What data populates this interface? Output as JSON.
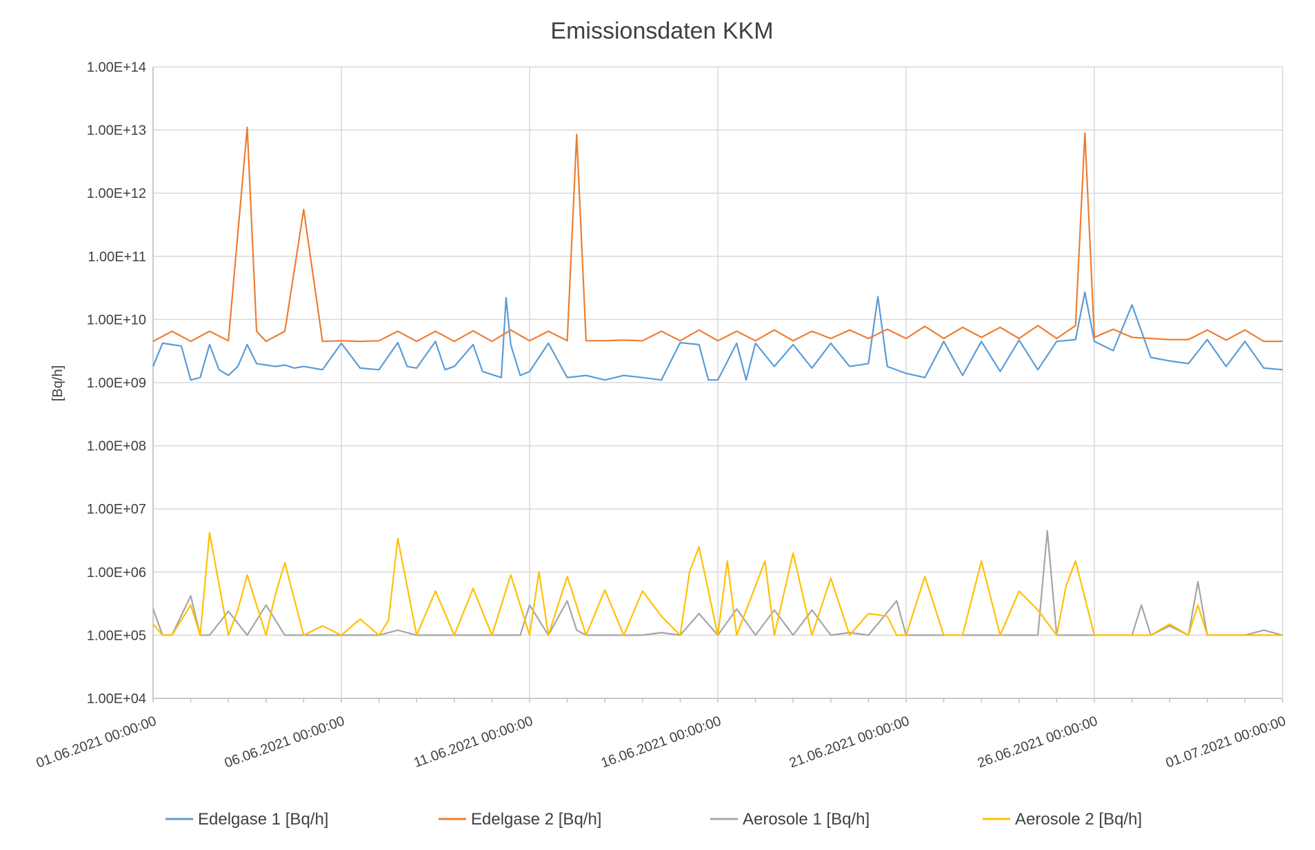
{
  "chart_data": {
    "type": "line",
    "title": "Emissionsdaten KKM",
    "xlabel": "",
    "ylabel": "[Bq/h]",
    "y_scale": "log",
    "ylim": [
      10000,
      100000000000000
    ],
    "y_ticks": [
      10000,
      100000,
      1000000,
      10000000,
      100000000,
      1000000000,
      10000000000,
      100000000000,
      1000000000000,
      10000000000000,
      100000000000000
    ],
    "y_tick_labels": [
      "1.00E+04",
      "1.00E+05",
      "1.00E+06",
      "1.00E+07",
      "1.00E+08",
      "1.00E+09",
      "1.00E+10",
      "1.00E+11",
      "1.00E+12",
      "1.00E+13",
      "1.00E+14"
    ],
    "xlim": [
      "2021-06-01T00:00:00",
      "2021-07-01T00:00:00"
    ],
    "x_ticks": [
      "2021-06-01T00:00:00",
      "2021-06-06T00:00:00",
      "2021-06-11T00:00:00",
      "2021-06-16T00:00:00",
      "2021-06-21T00:00:00",
      "2021-06-26T00:00:00",
      "2021-07-01T00:00:00"
    ],
    "x_tick_labels": [
      "01.06.2021 00:00:00",
      "06.06.2021 00:00:00",
      "11.06.2021 00:00:00",
      "16.06.2021 00:00:00",
      "21.06.2021 00:00:00",
      "26.06.2021 00:00:00",
      "01.07.2021 00:00:00"
    ],
    "grid": true,
    "legend_position": "bottom",
    "series": [
      {
        "name": "Edelgase 1 [Bq/h]",
        "color": "#5B9BD5",
        "x": [
          "2021-06-01T00:00:00",
          "2021-06-01T06:00:00",
          "2021-06-01T12:00:00",
          "2021-06-01T18:00:00",
          "2021-06-02T00:00:00",
          "2021-06-02T06:00:00",
          "2021-06-02T12:00:00",
          "2021-06-02T18:00:00",
          "2021-06-03T00:00:00",
          "2021-06-03T06:00:00",
          "2021-06-03T12:00:00",
          "2021-06-03T18:00:00",
          "2021-06-04T00:00:00",
          "2021-06-04T06:00:00",
          "2021-06-04T12:00:00",
          "2021-06-04T18:00:00",
          "2021-06-05T00:00:00",
          "2021-06-05T12:00:00",
          "2021-06-06T00:00:00",
          "2021-06-06T12:00:00",
          "2021-06-07T00:00:00",
          "2021-06-07T12:00:00",
          "2021-06-07T18:00:00",
          "2021-06-08T00:00:00",
          "2021-06-08T12:00:00",
          "2021-06-08T18:00:00",
          "2021-06-09T00:00:00",
          "2021-06-09T12:00:00",
          "2021-06-09T18:00:00",
          "2021-06-10T06:00:00",
          "2021-06-10T09:00:00",
          "2021-06-10T12:00:00",
          "2021-06-10T18:00:00",
          "2021-06-11T00:00:00",
          "2021-06-11T12:00:00",
          "2021-06-12T00:00:00",
          "2021-06-12T12:00:00",
          "2021-06-13T00:00:00",
          "2021-06-13T12:00:00",
          "2021-06-14T00:00:00",
          "2021-06-14T12:00:00",
          "2021-06-15T00:00:00",
          "2021-06-15T12:00:00",
          "2021-06-15T18:00:00",
          "2021-06-16T00:00:00",
          "2021-06-16T12:00:00",
          "2021-06-16T18:00:00",
          "2021-06-17T00:00:00",
          "2021-06-17T12:00:00",
          "2021-06-18T00:00:00",
          "2021-06-18T12:00:00",
          "2021-06-19T00:00:00",
          "2021-06-19T12:00:00",
          "2021-06-20T00:00:00",
          "2021-06-20T06:00:00",
          "2021-06-20T12:00:00",
          "2021-06-21T00:00:00",
          "2021-06-21T12:00:00",
          "2021-06-22T00:00:00",
          "2021-06-22T12:00:00",
          "2021-06-23T00:00:00",
          "2021-06-23T12:00:00",
          "2021-06-24T00:00:00",
          "2021-06-24T12:00:00",
          "2021-06-25T00:00:00",
          "2021-06-25T12:00:00",
          "2021-06-25T18:00:00",
          "2021-06-26T00:00:00",
          "2021-06-26T06:00:00",
          "2021-06-26T12:00:00",
          "2021-06-27T00:00:00",
          "2021-06-27T12:00:00",
          "2021-06-28T00:00:00",
          "2021-06-28T12:00:00",
          "2021-06-29T00:00:00",
          "2021-06-29T12:00:00",
          "2021-06-30T00:00:00",
          "2021-06-30T12:00:00",
          "2021-07-01T00:00:00"
        ],
        "values": [
          1800000000,
          4200000000,
          4000000000,
          3800000000,
          1100000000,
          1200000000,
          4000000000,
          1600000000,
          1300000000,
          1800000000,
          4000000000,
          2000000000,
          1900000000,
          1800000000,
          1900000000,
          1700000000,
          1800000000,
          1600000000,
          4200000000,
          1700000000,
          1600000000,
          4300000000,
          1800000000,
          1700000000,
          4500000000,
          1600000000,
          1800000000,
          4000000000,
          1500000000,
          1200000000,
          22000000000,
          4000000000,
          1300000000,
          1500000000,
          4200000000,
          1200000000,
          1300000000,
          1100000000,
          1300000000,
          1200000000,
          1100000000,
          4300000000,
          4000000000,
          1100000000,
          1100000000,
          4200000000,
          1100000000,
          4200000000,
          1800000000,
          4000000000,
          1700000000,
          4200000000,
          1800000000,
          2000000000,
          23000000000,
          1800000000,
          1400000000,
          1200000000,
          4500000000,
          1300000000,
          4500000000,
          1500000000,
          4700000000,
          1600000000,
          4500000000,
          4800000000,
          27000000000,
          4500000000,
          3800000000,
          3200000000,
          17000000000,
          2500000000,
          2200000000,
          2000000000,
          4800000000,
          1800000000,
          4500000000,
          1700000000,
          1600000000
        ]
      },
      {
        "name": "Edelgase 2 [Bq/h]",
        "color": "#ED7D31",
        "x": [
          "2021-06-01T00:00:00",
          "2021-06-01T12:00:00",
          "2021-06-02T00:00:00",
          "2021-06-02T12:00:00",
          "2021-06-03T00:00:00",
          "2021-06-03T12:00:00",
          "2021-06-03T18:00:00",
          "2021-06-04T00:00:00",
          "2021-06-04T12:00:00",
          "2021-06-05T00:00:00",
          "2021-06-05T12:00:00",
          "2021-06-06T00:00:00",
          "2021-06-06T12:00:00",
          "2021-06-07T00:00:00",
          "2021-06-07T12:00:00",
          "2021-06-08T00:00:00",
          "2021-06-08T12:00:00",
          "2021-06-09T00:00:00",
          "2021-06-09T12:00:00",
          "2021-06-10T00:00:00",
          "2021-06-10T12:00:00",
          "2021-06-11T00:00:00",
          "2021-06-11T12:00:00",
          "2021-06-12T00:00:00",
          "2021-06-12T06:00:00",
          "2021-06-12T12:00:00",
          "2021-06-13T00:00:00",
          "2021-06-13T12:00:00",
          "2021-06-14T00:00:00",
          "2021-06-14T12:00:00",
          "2021-06-15T00:00:00",
          "2021-06-15T12:00:00",
          "2021-06-16T00:00:00",
          "2021-06-16T12:00:00",
          "2021-06-17T00:00:00",
          "2021-06-17T12:00:00",
          "2021-06-18T00:00:00",
          "2021-06-18T12:00:00",
          "2021-06-19T00:00:00",
          "2021-06-19T12:00:00",
          "2021-06-20T00:00:00",
          "2021-06-20T12:00:00",
          "2021-06-21T00:00:00",
          "2021-06-21T12:00:00",
          "2021-06-22T00:00:00",
          "2021-06-22T12:00:00",
          "2021-06-23T00:00:00",
          "2021-06-23T12:00:00",
          "2021-06-24T00:00:00",
          "2021-06-24T12:00:00",
          "2021-06-25T00:00:00",
          "2021-06-25T12:00:00",
          "2021-06-25T18:00:00",
          "2021-06-26T00:00:00",
          "2021-06-26T12:00:00",
          "2021-06-27T00:00:00",
          "2021-06-27T12:00:00",
          "2021-06-28T00:00:00",
          "2021-06-28T12:00:00",
          "2021-06-29T00:00:00",
          "2021-06-29T12:00:00",
          "2021-06-30T00:00:00",
          "2021-06-30T12:00:00",
          "2021-07-01T00:00:00"
        ],
        "values": [
          4500000000,
          6500000000,
          4500000000,
          6500000000,
          4600000000,
          11000000000000,
          6500000000,
          4500000000,
          6500000000,
          550000000000,
          4500000000,
          4600000000,
          4500000000,
          4600000000,
          6500000000,
          4500000000,
          6500000000,
          4500000000,
          6600000000,
          4500000000,
          6800000000,
          4600000000,
          6500000000,
          4600000000,
          8500000000000,
          4600000000,
          4600000000,
          4700000000,
          4600000000,
          6500000000,
          4600000000,
          6800000000,
          4600000000,
          6500000000,
          4600000000,
          6800000000,
          4600000000,
          6500000000,
          5000000000,
          6800000000,
          5000000000,
          7000000000,
          5000000000,
          7800000000,
          5000000000,
          7500000000,
          5200000000,
          7500000000,
          5000000000,
          8000000000,
          5000000000,
          8000000000,
          9000000000000,
          5200000000,
          7000000000,
          5200000000,
          5000000000,
          4800000000,
          4800000000,
          6800000000,
          4700000000,
          6800000000,
          4500000000,
          4500000000
        ]
      },
      {
        "name": "Aerosole 1 [Bq/h]",
        "color": "#A5A5A5",
        "x": [
          "2021-06-01T00:00:00",
          "2021-06-01T06:00:00",
          "2021-06-01T12:00:00",
          "2021-06-02T00:00:00",
          "2021-06-02T06:00:00",
          "2021-06-02T12:00:00",
          "2021-06-03T00:00:00",
          "2021-06-03T12:00:00",
          "2021-06-04T00:00:00",
          "2021-06-04T12:00:00",
          "2021-06-05T00:00:00",
          "2021-06-06T00:00:00",
          "2021-06-07T00:00:00",
          "2021-06-07T12:00:00",
          "2021-06-08T00:00:00",
          "2021-06-09T00:00:00",
          "2021-06-10T00:00:00",
          "2021-06-10T18:00:00",
          "2021-06-11T00:00:00",
          "2021-06-11T12:00:00",
          "2021-06-12T00:00:00",
          "2021-06-12T06:00:00",
          "2021-06-12T12:00:00",
          "2021-06-13T00:00:00",
          "2021-06-14T00:00:00",
          "2021-06-14T12:00:00",
          "2021-06-15T00:00:00",
          "2021-06-15T12:00:00",
          "2021-06-16T00:00:00",
          "2021-06-16T12:00:00",
          "2021-06-17T00:00:00",
          "2021-06-17T12:00:00",
          "2021-06-18T00:00:00",
          "2021-06-18T12:00:00",
          "2021-06-19T00:00:00",
          "2021-06-19T12:00:00",
          "2021-06-20T00:00:00",
          "2021-06-20T18:00:00",
          "2021-06-21T00:00:00",
          "2021-06-21T12:00:00",
          "2021-06-22T00:00:00",
          "2021-06-23T00:00:00",
          "2021-06-24T00:00:00",
          "2021-06-24T12:00:00",
          "2021-06-24T18:00:00",
          "2021-06-25T00:00:00",
          "2021-06-25T12:00:00",
          "2021-06-26T00:00:00",
          "2021-06-27T00:00:00",
          "2021-06-27T06:00:00",
          "2021-06-27T12:00:00",
          "2021-06-28T00:00:00",
          "2021-06-28T12:00:00",
          "2021-06-28T18:00:00",
          "2021-06-29T00:00:00",
          "2021-06-29T12:00:00",
          "2021-06-30T00:00:00",
          "2021-06-30T12:00:00",
          "2021-07-01T00:00:00"
        ],
        "values": [
          260000,
          100000,
          100000,
          420000,
          100000,
          100000,
          240000,
          100000,
          300000,
          100000,
          100000,
          100000,
          100000,
          120000,
          100000,
          100000,
          100000,
          100000,
          300000,
          100000,
          350000,
          120000,
          100000,
          100000,
          100000,
          110000,
          100000,
          220000,
          100000,
          260000,
          100000,
          250000,
          100000,
          250000,
          100000,
          110000,
          100000,
          350000,
          100000,
          100000,
          100000,
          100000,
          100000,
          100000,
          4500000,
          100000,
          100000,
          100000,
          100000,
          300000,
          100000,
          140000,
          100000,
          700000,
          100000,
          100000,
          100000,
          120000,
          100000
        ]
      },
      {
        "name": "Aerosole 2 [Bq/h]",
        "color": "#FFC000",
        "x": [
          "2021-06-01T00:00:00",
          "2021-06-01T06:00:00",
          "2021-06-01T12:00:00",
          "2021-06-02T00:00:00",
          "2021-06-02T06:00:00",
          "2021-06-02T12:00:00",
          "2021-06-03T00:00:00",
          "2021-06-03T06:00:00",
          "2021-06-03T12:00:00",
          "2021-06-04T00:00:00",
          "2021-06-04T06:00:00",
          "2021-06-04T12:00:00",
          "2021-06-05T00:00:00",
          "2021-06-05T12:00:00",
          "2021-06-06T00:00:00",
          "2021-06-06T12:00:00",
          "2021-06-07T00:00:00",
          "2021-06-07T06:00:00",
          "2021-06-07T12:00:00",
          "2021-06-08T00:00:00",
          "2021-06-08T12:00:00",
          "2021-06-09T00:00:00",
          "2021-06-09T12:00:00",
          "2021-06-10T00:00:00",
          "2021-06-10T12:00:00",
          "2021-06-11T00:00:00",
          "2021-06-11T06:00:00",
          "2021-06-11T12:00:00",
          "2021-06-12T00:00:00",
          "2021-06-12T12:00:00",
          "2021-06-13T00:00:00",
          "2021-06-13T12:00:00",
          "2021-06-14T00:00:00",
          "2021-06-14T12:00:00",
          "2021-06-15T00:00:00",
          "2021-06-15T06:00:00",
          "2021-06-15T12:00:00",
          "2021-06-16T00:00:00",
          "2021-06-16T06:00:00",
          "2021-06-16T12:00:00",
          "2021-06-17T00:00:00",
          "2021-06-17T06:00:00",
          "2021-06-17T12:00:00",
          "2021-06-18T00:00:00",
          "2021-06-18T12:00:00",
          "2021-06-19T00:00:00",
          "2021-06-19T12:00:00",
          "2021-06-20T00:00:00",
          "2021-06-20T12:00:00",
          "2021-06-20T18:00:00",
          "2021-06-21T00:00:00",
          "2021-06-21T12:00:00",
          "2021-06-22T00:00:00",
          "2021-06-22T12:00:00",
          "2021-06-23T00:00:00",
          "2021-06-23T12:00:00",
          "2021-06-24T00:00:00",
          "2021-06-24T12:00:00",
          "2021-06-25T00:00:00",
          "2021-06-25T06:00:00",
          "2021-06-25T12:00:00",
          "2021-06-26T00:00:00",
          "2021-06-27T00:00:00",
          "2021-06-27T12:00:00",
          "2021-06-28T00:00:00",
          "2021-06-28T12:00:00",
          "2021-06-28T18:00:00",
          "2021-06-29T00:00:00",
          "2021-06-30T00:00:00",
          "2021-07-01T00:00:00"
        ],
        "values": [
          150000,
          100000,
          100000,
          300000,
          100000,
          4200000,
          100000,
          250000,
          900000,
          100000,
          450000,
          1400000,
          100000,
          140000,
          100000,
          180000,
          100000,
          170000,
          3400000,
          100000,
          500000,
          100000,
          550000,
          100000,
          900000,
          100000,
          1000000,
          100000,
          850000,
          100000,
          520000,
          100000,
          500000,
          200000,
          100000,
          1000000,
          2500000,
          100000,
          1500000,
          100000,
          600000,
          1500000,
          100000,
          2000000,
          100000,
          800000,
          100000,
          220000,
          200000,
          100000,
          100000,
          850000,
          100000,
          100000,
          1500000,
          100000,
          500000,
          250000,
          100000,
          600000,
          1500000,
          100000,
          100000,
          100000,
          150000,
          100000,
          300000,
          100000,
          100000,
          100000
        ]
      }
    ]
  }
}
